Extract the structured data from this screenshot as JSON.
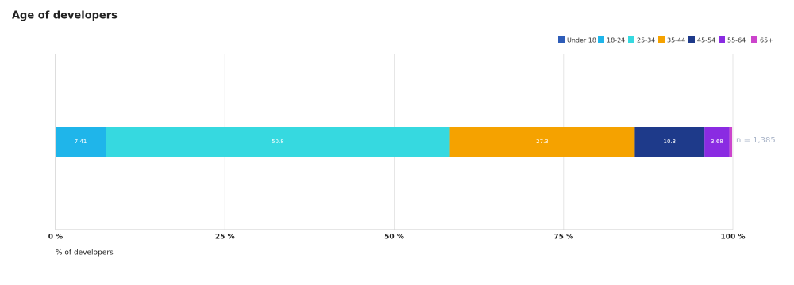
{
  "chart_data": {
    "type": "stacked-bar",
    "orientation": "horizontal",
    "title": "Age of developers",
    "xlabel": "% of developers",
    "annotation": "n = 1,385",
    "categories": [
      null
    ],
    "series": [
      {
        "name": "Under 18",
        "color": "#2e5cb8",
        "values": [
          0
        ]
      },
      {
        "name": "18-24",
        "color": "#1fb5ea",
        "values": [
          7.41
        ]
      },
      {
        "name": "25-34",
        "color": "#36d9e0",
        "values": [
          50.8
        ]
      },
      {
        "name": "35-44",
        "color": "#f5a200",
        "values": [
          27.3
        ]
      },
      {
        "name": "45-54",
        "color": "#1e3a8a",
        "values": [
          10.3
        ]
      },
      {
        "name": "55-64",
        "color": "#8a2be2",
        "values": [
          3.68
        ]
      },
      {
        "name": "65+",
        "color": "#cc44cc",
        "values": [
          0.4
        ]
      }
    ],
    "xlim": [
      0,
      100
    ],
    "xticks": [
      {
        "value": 0,
        "label": "0 %"
      },
      {
        "value": 25,
        "label": "25 %"
      },
      {
        "value": 50,
        "label": "50 %"
      },
      {
        "value": 75,
        "label": "75 %"
      },
      {
        "value": 100,
        "label": "100 %"
      }
    ],
    "grid": true,
    "legend": "top-right"
  }
}
